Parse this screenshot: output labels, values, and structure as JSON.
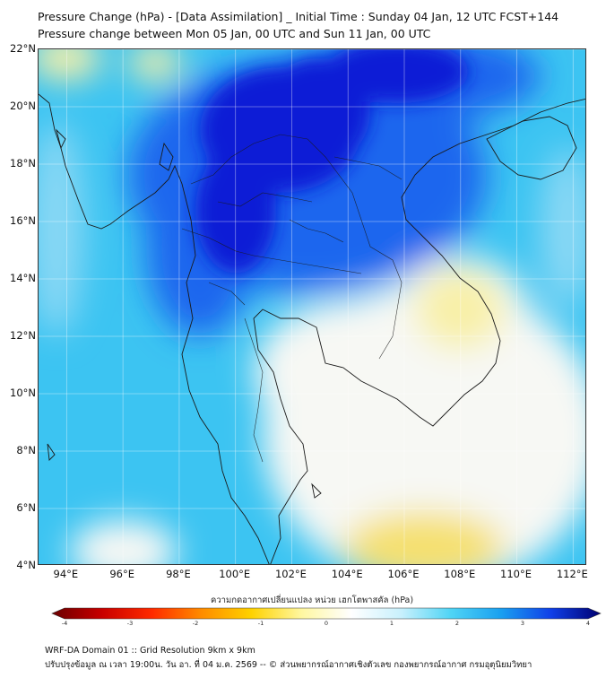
{
  "title_line1": "Pressure Change (hPa) - [Data Assimilation] _ Initial Time : Sunday 04 Jan, 12 UTC FCST+144",
  "title_line2": "Pressure change between Mon 05 Jan, 00 UTC and Sun 11 Jan, 00 UTC",
  "map": {
    "lat_range": [
      4,
      22
    ],
    "lon_range": [
      93,
      112.5
    ],
    "lat_ticks": [
      "22°N",
      "20°N",
      "18°N",
      "16°N",
      "14°N",
      "12°N",
      "10°N",
      "8°N",
      "6°N",
      "4°N"
    ],
    "lon_ticks": [
      "94°E",
      "96°E",
      "98°E",
      "100°E",
      "102°E",
      "104°E",
      "106°E",
      "108°E",
      "110°E",
      "112°E"
    ],
    "grid": true,
    "field_colors": {
      "strong_decrease": "#0a1fd6",
      "moderate_decrease": "#1a66ee",
      "light_decrease": "#3cc4f2",
      "slight_decrease": "#8ad8f4",
      "near_zero": "#f7f8f4",
      "slight_increase": "#f8f0a8",
      "increase": "#f5e070"
    }
  },
  "colorbar": {
    "label": "ความกดอากาศเปลี่ยนแปลง หน่วย เฮกโตพาสคัล (hPa)",
    "min": -4,
    "max": 4,
    "ticks": [
      "-4",
      "-3",
      "-2",
      "-1",
      "0",
      "1",
      "2",
      "3",
      "4"
    ],
    "stops": [
      "#6a0000",
      "#c80000",
      "#ff2a00",
      "#ff8c00",
      "#ffd200",
      "#fff7a0",
      "#ffffff",
      "#c8f0fc",
      "#4fd4f5",
      "#1aa0f0",
      "#1040e8",
      "#000070"
    ]
  },
  "footer_line1": "WRF-DA Domain 01 :: Grid Resolution 9km x 9km",
  "footer_line2": "ปรับปรุงข้อมูล ณ เวลา 19:00น. วัน อา. ที่ 04 ม.ค. 2569 -- © ส่วนพยากรณ์อากาศเชิงตัวเลข กองพยากรณ์อากาศ กรมอุตุนิยมวิทยา"
}
